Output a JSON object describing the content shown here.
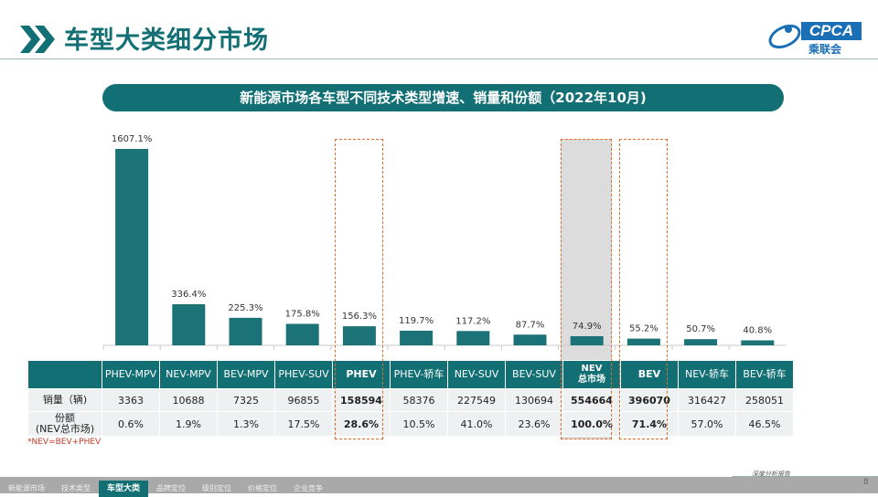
{
  "header": {
    "title": "车型大类细分市场",
    "logo_text": "CPCA",
    "logo_sub": "乘联会"
  },
  "subtitle": "新能源市场各车型不同技术类型增速、销量和份额（2022年10月)",
  "chart_data": {
    "type": "bar",
    "categories": [
      "PHEV-MPV",
      "NEV-MPV",
      "BEV-MPV",
      "PHEV-SUV",
      "PHEV",
      "PHEV-轿车",
      "NEV-SUV",
      "BEV-SUV",
      "NEV\n总市场",
      "BEV",
      "NEV-轿车",
      "BEV-轿车"
    ],
    "values": [
      1607.1,
      336.4,
      225.3,
      175.8,
      156.3,
      119.7,
      117.2,
      87.7,
      74.9,
      55.2,
      50.7,
      40.8
    ],
    "value_labels": [
      "1607.1%",
      "336.4%",
      "225.3%",
      "175.8%",
      "156.3%",
      "119.7%",
      "117.2%",
      "87.7%",
      "74.9%",
      "55.2%",
      "50.7%",
      "40.8%"
    ],
    "ylim": [
      0,
      1607.1
    ],
    "color": "#1b7378",
    "highlight": [
      "PHEV",
      "NEV\n总市场",
      "BEV"
    ]
  },
  "table": {
    "columns": [
      "PHEV-MPV",
      "NEV-MPV",
      "BEV-MPV",
      "PHEV-SUV",
      "PHEV",
      "PHEV-轿车",
      "NEV-SUV",
      "BEV-SUV",
      "NEV\n总市场",
      "BEV",
      "NEV-轿车",
      "BEV-轿车"
    ],
    "rows": [
      {
        "label": "销量（辆)",
        "values": [
          "3363",
          "10688",
          "7325",
          "96855",
          "158594",
          "58376",
          "227549",
          "130694",
          "554664",
          "396070",
          "316427",
          "258051"
        ]
      },
      {
        "label": "份额\n(NEV总市场)",
        "values": [
          "0.6%",
          "1.9%",
          "1.3%",
          "17.5%",
          "28.6%",
          "10.5%",
          "41.0%",
          "23.6%",
          "100.0%",
          "71.4%",
          "57.0%",
          "46.5%"
        ]
      }
    ]
  },
  "note": "*NEV=BEV+PHEV",
  "footer": {
    "tabs": [
      "新能源市场",
      "技术类型",
      "车型大类",
      "品牌定位",
      "级别定位",
      "价格定位",
      "企业竞争"
    ],
    "active": 2,
    "report_label": "深度分析报告",
    "page": "8"
  }
}
